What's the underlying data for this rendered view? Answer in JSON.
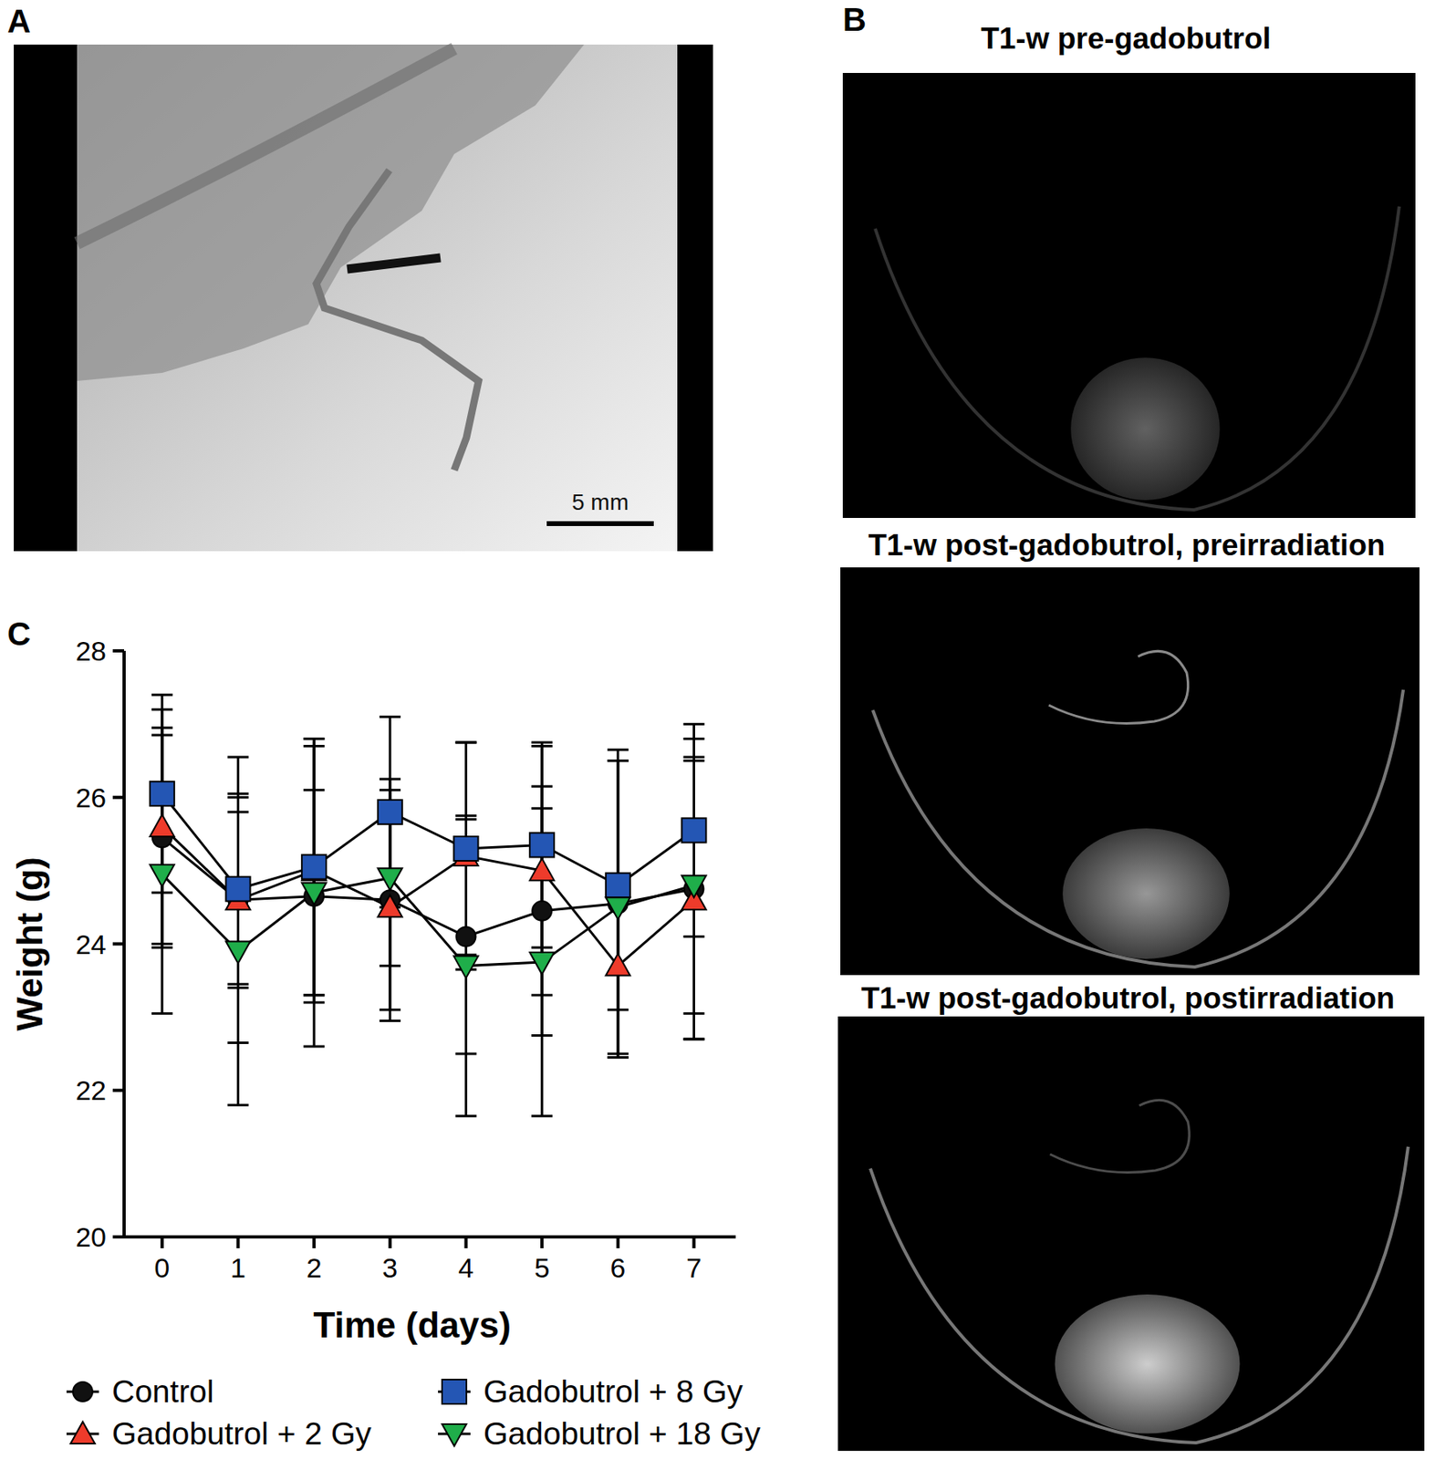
{
  "chart_data": {
    "type": "line",
    "x": [
      0,
      1,
      2,
      3,
      4,
      5,
      6,
      7
    ],
    "xlim": [
      -0.5,
      7.55
    ],
    "xticks": [
      0,
      1,
      2,
      3,
      4,
      5,
      6,
      7
    ],
    "ylim": [
      20,
      28
    ],
    "yticks": [
      20,
      22,
      24,
      26,
      28
    ],
    "x_label": "Time (days)",
    "y_label": "Weight (g)",
    "series": [
      {
        "name": "Control",
        "color": "#111111",
        "marker": "circle",
        "values": [
          25.45,
          24.6,
          24.65,
          24.6,
          24.1,
          24.45,
          24.55,
          24.75
        ],
        "errors": [
          1.5,
          1.95,
          2.05,
          1.65,
          1.6,
          1.7,
          2.1,
          2.05
        ]
      },
      {
        "name": "Gadobutrol + 2 Gy",
        "color": "#ee3b2b",
        "marker": "triangle-up",
        "values": [
          25.6,
          24.6,
          25.0,
          24.5,
          25.2,
          25.0,
          23.7,
          24.6
        ],
        "errors": [
          1.6,
          1.2,
          1.8,
          1.4,
          1.55,
          1.7,
          1.25,
          1.9
        ]
      },
      {
        "name": "Gadobutrol + 8 Gy",
        "color": "#2456b4",
        "marker": "square",
        "values": [
          26.05,
          24.75,
          25.05,
          25.8,
          25.3,
          25.35,
          24.8,
          25.55
        ],
        "errors": [
          1.35,
          1.3,
          1.75,
          1.3,
          1.45,
          1.4,
          1.7,
          1.45
        ]
      },
      {
        "name": "Gadobutrol + 18 Gy",
        "color": "#1fae4a",
        "marker": "triangle-down",
        "values": [
          24.95,
          23.9,
          24.7,
          24.9,
          23.7,
          23.75,
          24.5,
          24.8
        ],
        "errors": [
          1.9,
          2.1,
          1.4,
          1.2,
          2.05,
          2.1,
          2.0,
          1.75
        ]
      }
    ]
  },
  "figure": {
    "panel_labels": [
      "A",
      "B",
      "C"
    ],
    "scale_bar": "5 mm",
    "mri_titles": [
      "T1-w pre-gadobutrol",
      "T1-w post-gadobutrol, preirradiation",
      "T1-w post-gadobutrol, postirradiation"
    ]
  }
}
